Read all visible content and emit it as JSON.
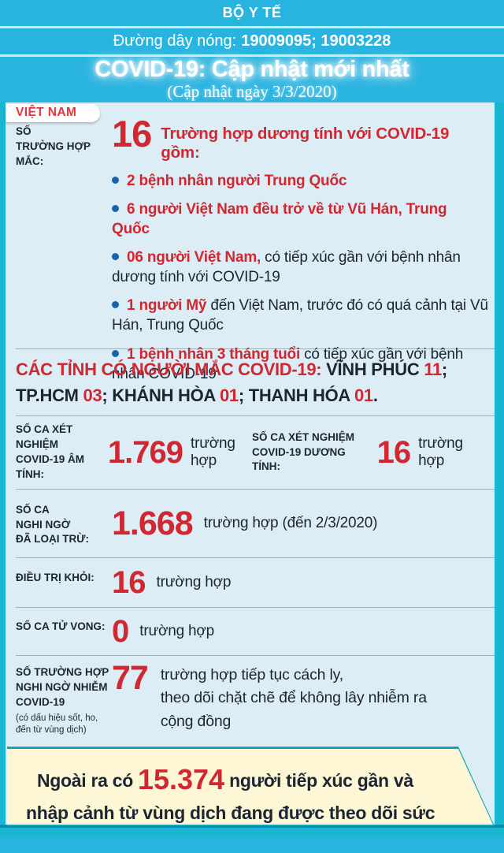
{
  "header": {
    "ministry": "BỘ Y TẾ",
    "hotline_label": "Đường dây nóng:",
    "hotline_numbers": "19009095; 19003228",
    "title": "COVID-19: Cập nhật mới nhất",
    "subtitle": "(Cập nhật ngày 3/3/2020)"
  },
  "tab": {
    "label": "VIỆT NAM"
  },
  "sections": {
    "cases": {
      "label": "SỐ\nTRƯỜNG HỢP\nMẮC:",
      "number": "16",
      "heading": "Trường hợp dương tính với COVID-19 gồm:",
      "bullets": [
        {
          "red": "2 bệnh nhân người Trung Quốc",
          "dark": ""
        },
        {
          "red": "6 người Việt Nam đều trở về từ Vũ Hán, Trung Quốc",
          "dark": ""
        },
        {
          "red": "06 người Việt Nam,",
          "dark": " có tiếp xúc gần với bệnh nhân dương tính với COVID-19"
        },
        {
          "red": "1 người Mỹ",
          "dark": " đến Việt Nam, trước đó có quá cảnh tại Vũ Hán, Trung Quốc"
        },
        {
          "red": "1 bệnh nhân 3 tháng tuổi",
          "dark": " có tiếp xúc gần với bệnh nhân COVID-19"
        }
      ]
    },
    "provinces": {
      "label": "CÁC TỈNH CÓ NGƯỜI MẮC COVID-19: ",
      "items": [
        {
          "name": "VĨNH PHÚC ",
          "value": "11",
          "sep": "; "
        },
        {
          "name": "TP.HCM ",
          "value": "03",
          "sep": "; "
        },
        {
          "name": "KHÁNH HÒA ",
          "value": "01",
          "sep": "; "
        },
        {
          "name": "THANH HÓA ",
          "value": "01",
          "sep": "."
        }
      ]
    },
    "negative": {
      "label": "SỐ CA XÉT NGHIỆM\nCOVID-19 ÂM TÍNH:",
      "number": "1.769",
      "unit": "trường hợp"
    },
    "positive": {
      "label": "SỐ CA XÉT NGHIỆM\nCOVID-19 DƯƠNG TÍNH:",
      "number": "16",
      "unit": "trường hợp"
    },
    "suspected_excluded": {
      "label": "SỐ CA\nNGHI NGỜ\nĐÃ LOẠI TRỪ:",
      "number": "1.668",
      "unit": "trường hợp (đến 2/3/2020)"
    },
    "recovered": {
      "label": "ĐIỀU TRỊ KHỎI:",
      "number": "16",
      "unit": "trường hợp"
    },
    "deaths": {
      "label": "SỐ CA TỬ VONG:",
      "number": "0",
      "unit": "trường hợp"
    },
    "suspected_monitoring": {
      "label": "SỐ TRƯỜNG HỢP\nNGHI NGỜ NHIỄM\nCOVID-19",
      "label_note": "(có dấu hiệu sốt, ho,\nđến từ vùng dịch)",
      "number": "77",
      "text": "trường hợp tiếp tục cách ly,\ntheo dõi chặt chẽ để không lây nhiễm ra\ncộng đồng"
    }
  },
  "footer_note": {
    "prefix": "Ngoài ra có",
    "number": "15.374",
    "suffix": "người tiếp xúc gần và nhập cảnh từ vùng dịch đang được theo dõi sức khỏe."
  },
  "colors": {
    "band_cyan": "#29b4e0",
    "frame_teal": "#19b6d3",
    "panel_blue": "#dcedf5",
    "accent_red": "#d22730",
    "text_dark": "#1c2533",
    "bullet_blue": "#1565ae",
    "note_yellow": "#fdf7d6"
  }
}
